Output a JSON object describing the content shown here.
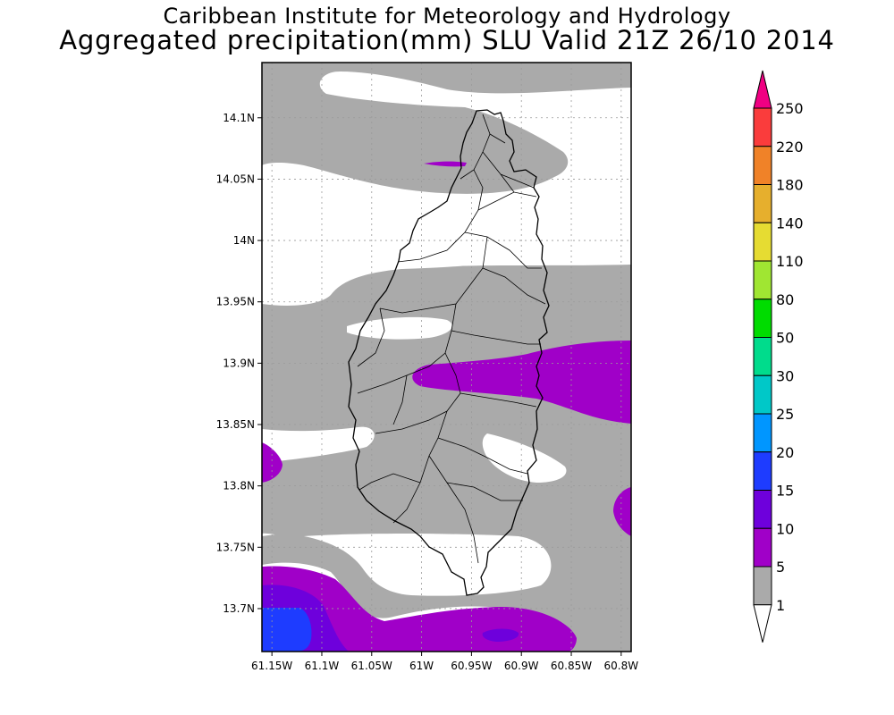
{
  "title": {
    "line1": "Caribbean Institute for Meteorology and Hydrology",
    "line2": "Aggregated precipitation(mm) SLU Valid 21Z 26/10 2014"
  },
  "map": {
    "region": "Saint Lucia",
    "lon_range": [
      -61.16,
      -60.79
    ],
    "lat_range": [
      13.665,
      14.145
    ],
    "x_ticks": [
      {
        "value": -61.15,
        "label": "61.15W"
      },
      {
        "value": -61.1,
        "label": "61.1W"
      },
      {
        "value": -61.05,
        "label": "61.05W"
      },
      {
        "value": -61.0,
        "label": "61W"
      },
      {
        "value": -60.95,
        "label": "60.95W"
      },
      {
        "value": -60.9,
        "label": "60.9W"
      },
      {
        "value": -60.85,
        "label": "60.85W"
      },
      {
        "value": -60.8,
        "label": "60.8W"
      }
    ],
    "y_ticks": [
      {
        "value": 14.1,
        "label": "14.1N"
      },
      {
        "value": 14.05,
        "label": "14.05N"
      },
      {
        "value": 14.0,
        "label": "14N"
      },
      {
        "value": 13.95,
        "label": "13.95N"
      },
      {
        "value": 13.9,
        "label": "13.9N"
      },
      {
        "value": 13.85,
        "label": "13.85N"
      },
      {
        "value": 13.8,
        "label": "13.8N"
      },
      {
        "value": 13.75,
        "label": "13.75N"
      },
      {
        "value": 13.7,
        "label": "13.7N"
      }
    ]
  },
  "colorbar": {
    "levels": [
      "1",
      "5",
      "10",
      "15",
      "20",
      "25",
      "30",
      "50",
      "80",
      "110",
      "140",
      "180",
      "220",
      "250"
    ],
    "colors": [
      "#aaaaaa",
      "#a000c8",
      "#6e00dc",
      "#1e3cff",
      "#0096ff",
      "#00c8c8",
      "#00dc8c",
      "#00dc00",
      "#a0e632",
      "#e6dc32",
      "#e6af2d",
      "#f08228",
      "#fa3c3c",
      "#f00082"
    ],
    "below_color": "#ffffff",
    "above_color": "#f00082"
  },
  "colors": {
    "gray": "#aaaaaa",
    "purple": "#a000c8",
    "violet": "#6e00dc",
    "blue": "#1e3cff"
  }
}
